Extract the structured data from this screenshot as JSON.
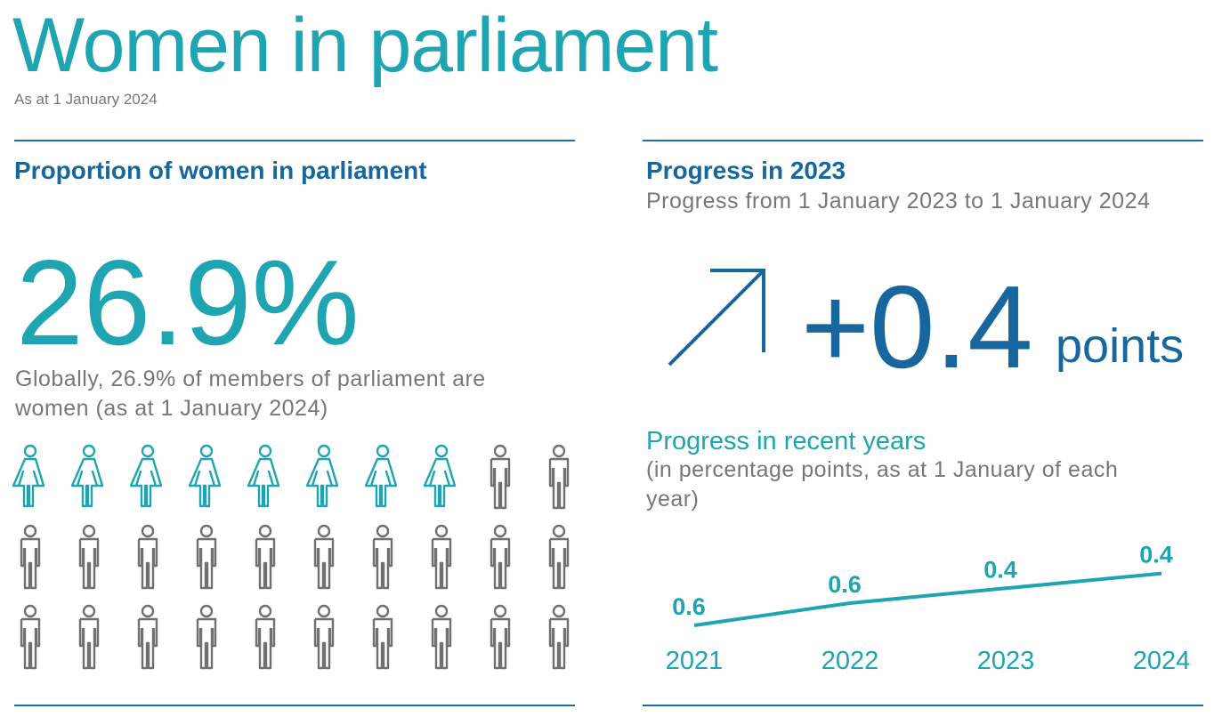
{
  "header": {
    "title": "Women in parliament",
    "subtitle": "As at 1 January 2024"
  },
  "left": {
    "heading": "Proportion of women in parliament",
    "big_value": "26.9%",
    "description": [
      "Globally, 26.9% of members of parliament are",
      "women (as at 1 January 2024)"
    ],
    "pictogram": {
      "women": 8,
      "men": 22,
      "women_color": "#1ea5b1",
      "men_color": "#707070"
    }
  },
  "right": {
    "heading": "Progress in 2023",
    "subheading": "Progress from 1 January 2023 to 1 January 2024",
    "change": "+0.4",
    "unit": "points",
    "recent_heading": "Progress in recent years",
    "recent_note": [
      "(in percentage points, as at 1 January of each",
      "year)"
    ]
  },
  "chart_data": {
    "type": "line",
    "categories": [
      "2021",
      "2022",
      "2023",
      "2024"
    ],
    "values": [
      0.6,
      0.6,
      0.4,
      0.4
    ],
    "color": "#1ea5b1"
  }
}
